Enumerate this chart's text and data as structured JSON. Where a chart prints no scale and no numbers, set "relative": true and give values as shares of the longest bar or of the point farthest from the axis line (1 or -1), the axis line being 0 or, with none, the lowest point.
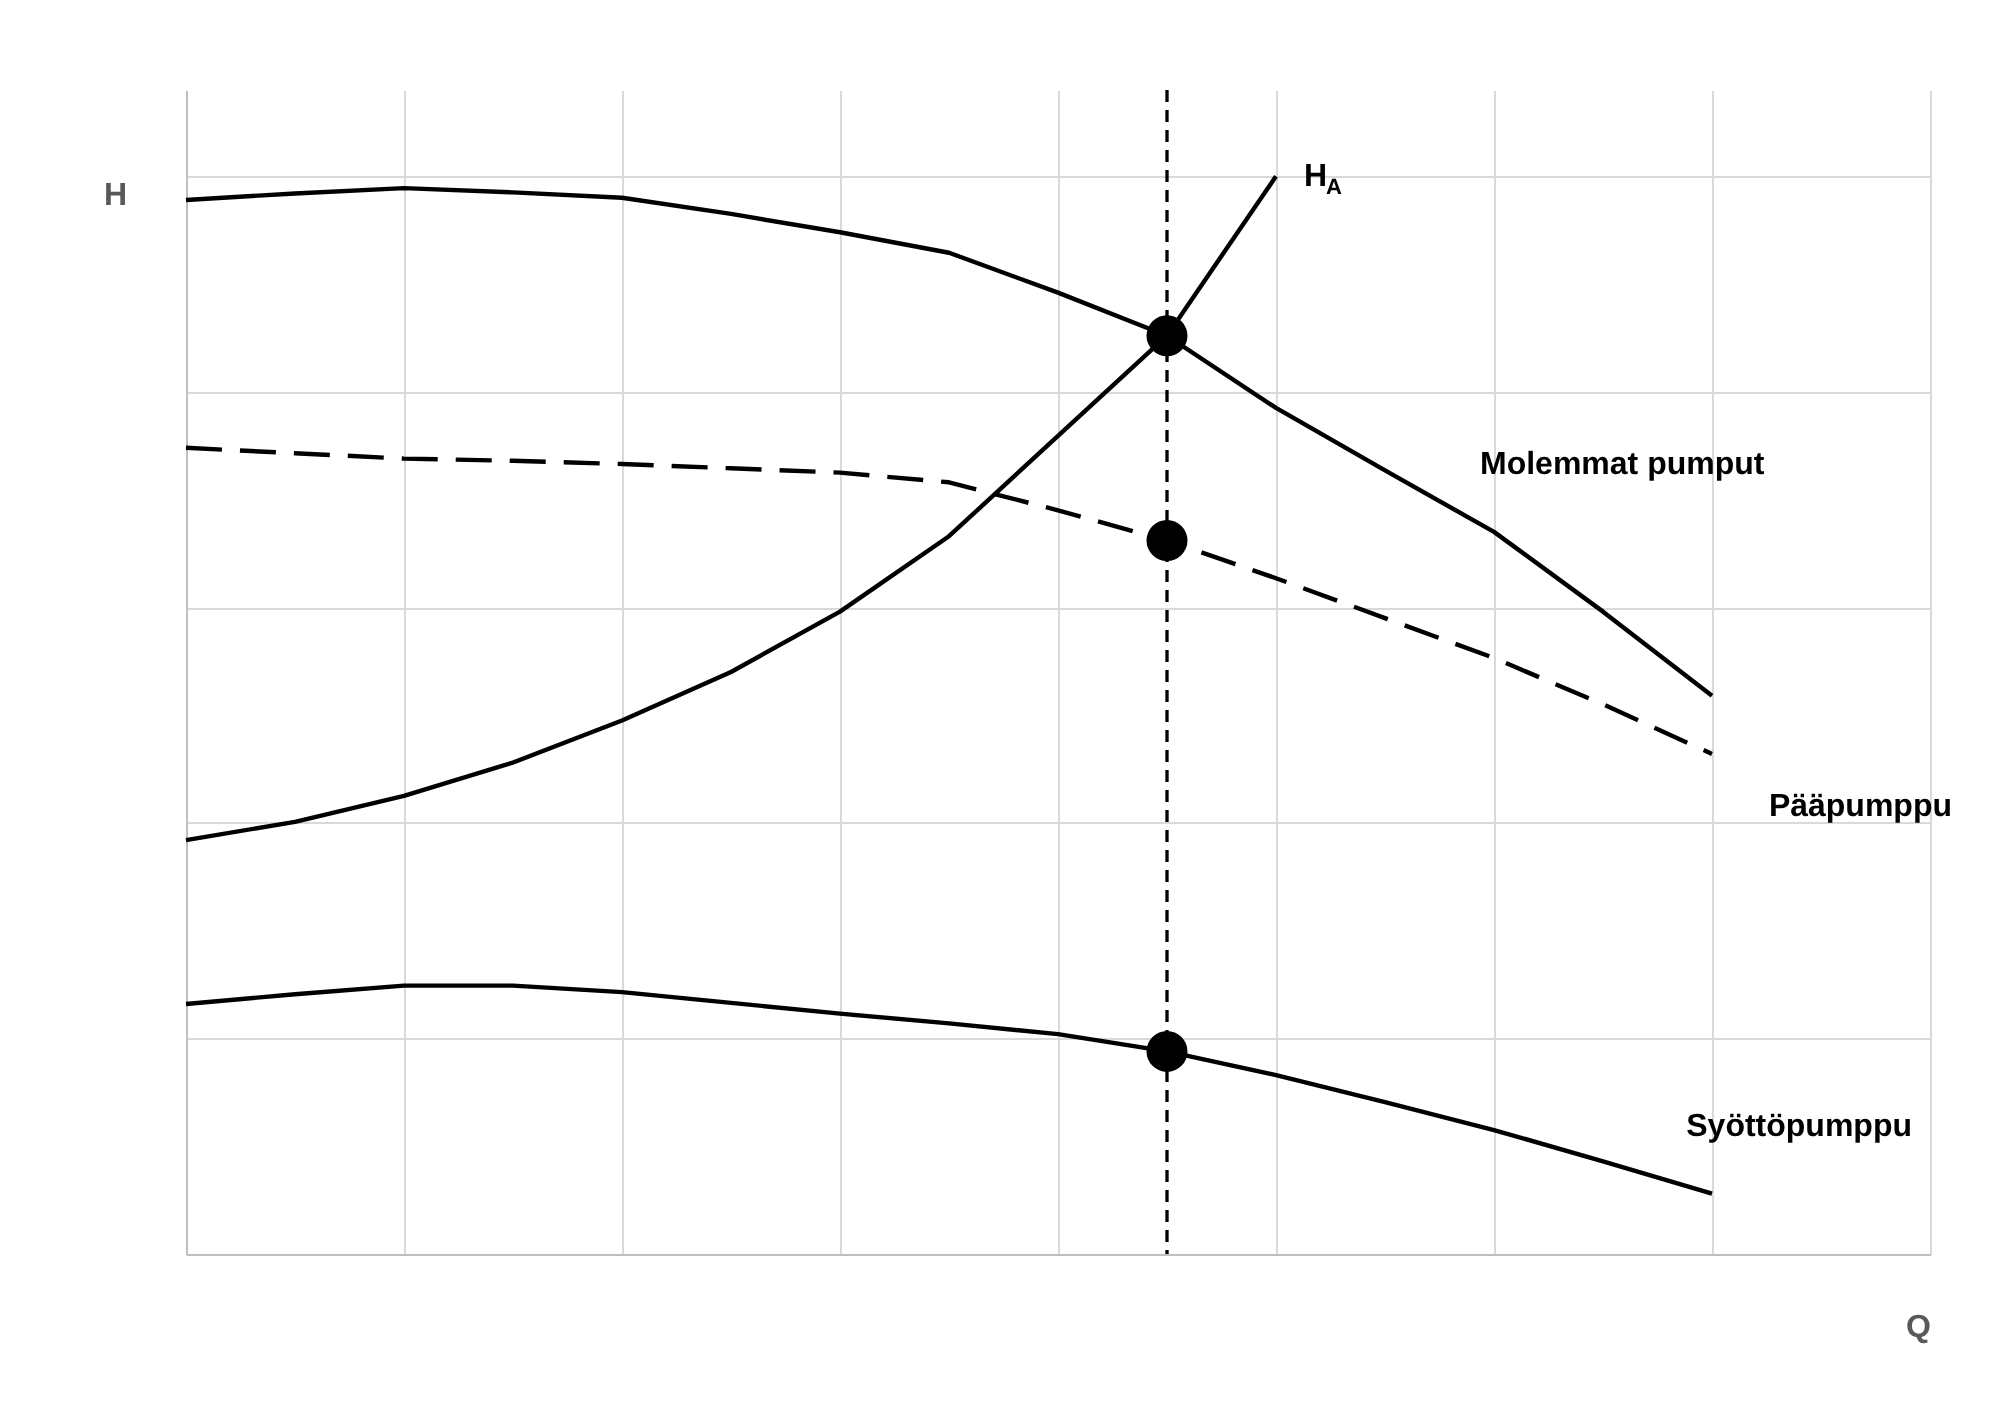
{
  "chart_data": {
    "type": "line",
    "relative": true,
    "xlabel": "Q",
    "ylabel": "H",
    "categories": [
      null,
      null,
      null,
      null,
      null,
      null,
      null,
      null,
      null,
      null,
      null,
      null,
      null,
      null,
      null
    ],
    "grid": true,
    "marker": "none",
    "series": [
      {
        "name": "Molemmat pumput",
        "color": "#000000",
        "line_style": "solid",
        "values": [
          0.978,
          0.984,
          0.989,
          0.985,
          0.98,
          0.965,
          0.948,
          0.929,
          0.892,
          0.852,
          0.785,
          0.727,
          0.67,
          0.596,
          0.518
        ]
      },
      {
        "name": "Pääpumppu",
        "color": "#000000",
        "line_style": "dashed",
        "values": [
          0.748,
          0.743,
          0.738,
          0.736,
          0.733,
          0.729,
          0.725,
          0.716,
          0.69,
          0.662,
          0.627,
          0.59,
          0.553,
          0.51,
          0.464
        ]
      },
      {
        "name": "Syöttöpumppu",
        "color": "#000000",
        "line_style": "solid",
        "values": [
          0.232,
          0.241,
          0.249,
          0.249,
          0.243,
          0.233,
          0.223,
          0.214,
          0.204,
          0.188,
          0.166,
          0.141,
          0.115,
          0.086,
          0.056
        ]
      },
      {
        "name": "H$_{A}$",
        "color": "#000000",
        "line_style": "solid",
        "values": [
          0.384,
          0.401,
          0.425,
          0.456,
          0.495,
          0.54,
          0.596,
          0.666,
          0.759,
          0.852,
          1.0,
          null,
          null,
          null,
          null
        ]
      },
      {
        "color": "#000000",
        "marker": "circle",
        "values": [
          null,
          null,
          null,
          null,
          null,
          null,
          null,
          null,
          null,
          0.852,
          null,
          null,
          null,
          null,
          null
        ]
      },
      {
        "color": "#000000",
        "marker": "circle",
        "values": [
          null,
          null,
          null,
          null,
          null,
          null,
          null,
          null,
          null,
          0.662,
          null,
          null,
          null,
          null,
          null
        ]
      },
      {
        "color": "#000000",
        "marker": "circle",
        "values": [
          null,
          null,
          null,
          null,
          null,
          null,
          null,
          null,
          null,
          0.188,
          null,
          null,
          null,
          null,
          null
        ]
      }
    ]
  }
}
